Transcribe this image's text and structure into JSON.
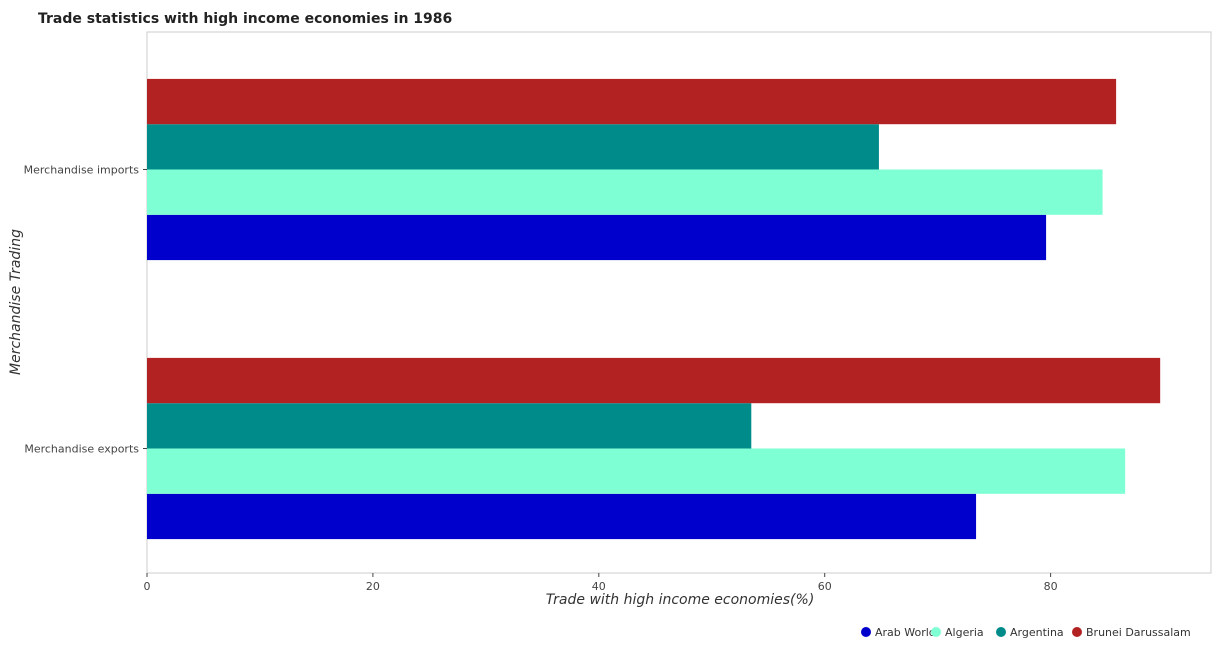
{
  "chart_data": {
    "type": "bar",
    "orientation": "horizontal",
    "title": "Trade statistics with high income economies in 1986",
    "xlabel": "Trade with high income economies(%)",
    "ylabel": "Merchandise Trading",
    "categories": [
      "Merchandise exports",
      "Merchandise imports"
    ],
    "series": [
      {
        "name": "Arab World",
        "color": "#0000cd",
        "values": [
          73.4,
          79.6
        ]
      },
      {
        "name": "Algeria",
        "color": "#7fffd4",
        "values": [
          86.6,
          84.6
        ]
      },
      {
        "name": "Argentina",
        "color": "#008b8b",
        "values": [
          53.5,
          64.8
        ]
      },
      {
        "name": "Brunei Darussalam",
        "color": "#b22222",
        "values": [
          89.7,
          85.8
        ]
      }
    ],
    "xlim": [
      0,
      94.2
    ],
    "xticks": [
      0,
      20,
      40,
      60,
      80
    ],
    "grid": false,
    "legend_position": "bottom-right"
  }
}
